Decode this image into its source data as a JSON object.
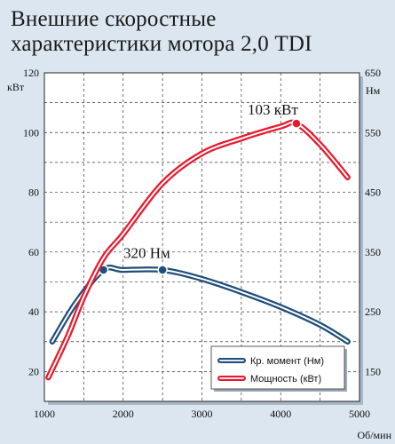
{
  "title_line_1": "Внешние скоростные",
  "title_line_2": "характеристики мотора 2,0 TDI",
  "chart_data": {
    "type": "line",
    "x_unit": "Об/мин",
    "y_left_unit": "кВт",
    "y_right_unit": "Нм",
    "xlim": [
      1000,
      5000
    ],
    "ylim_left": [
      10,
      120
    ],
    "ylim_right": [
      100,
      650
    ],
    "x_ticks": [
      1000,
      2000,
      3000,
      4000,
      5000
    ],
    "y_left_ticks": [
      20,
      40,
      60,
      80,
      100,
      120
    ],
    "y_right_ticks": [
      150,
      250,
      350,
      450,
      550,
      650
    ],
    "grid": true,
    "legend_position": "bottom-right",
    "colors": {
      "torque": "#1f4e7a",
      "power": "#e8192c",
      "background": "#dce6f0",
      "plot_area": "#ffffff"
    },
    "series": [
      {
        "name": "Кр. момент (Нм)",
        "axis": "right",
        "x": [
          1100,
          1400,
          1750,
          2000,
          2500,
          3000,
          3500,
          4000,
          4500,
          4850
        ],
        "y": [
          200,
          265,
          320,
          320,
          320,
          305,
          283,
          258,
          228,
          200
        ],
        "markers_x": [
          1750,
          2500
        ]
      },
      {
        "name": "Мощность (кВт)",
        "axis": "left",
        "x": [
          1050,
          1300,
          1500,
          1750,
          2000,
          2500,
          3000,
          3500,
          4000,
          4200,
          4500,
          4850
        ],
        "y": [
          18,
          32,
          45,
          58,
          66,
          83,
          93,
          98,
          102,
          103,
          96,
          85
        ],
        "markers_x": [
          4200
        ]
      }
    ],
    "annotations": [
      {
        "text": "320 Нм",
        "x": 2300,
        "y_right": 340
      },
      {
        "text": "103 кВт",
        "x": 3900,
        "y_left": 106
      }
    ]
  }
}
